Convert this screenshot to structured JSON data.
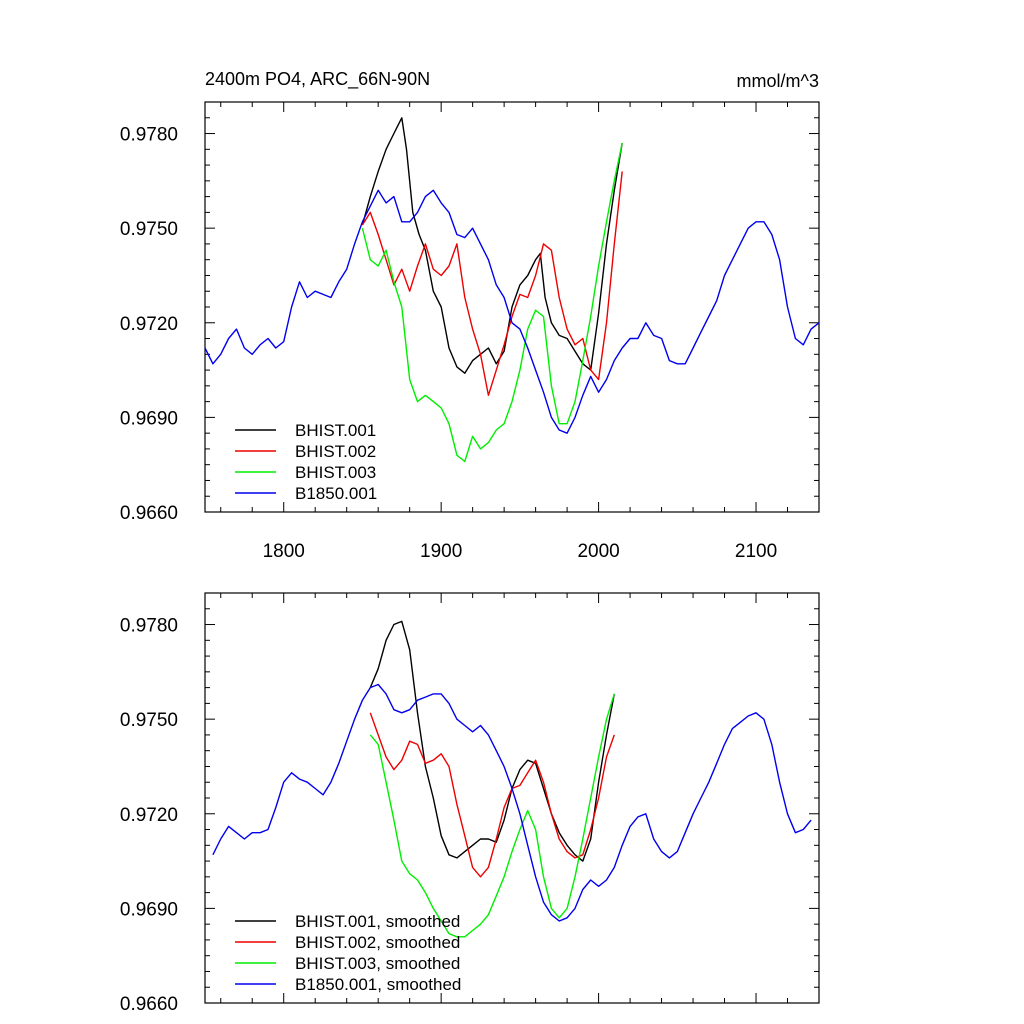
{
  "chart_data": [
    {
      "type": "line",
      "title": "2400m PO4, ARC_66N-90N",
      "units": "mmol/m^3",
      "xlim": [
        1750,
        2140
      ],
      "ylim": [
        0.966,
        0.979
      ],
      "x_ticks": [
        1800,
        1900,
        2000,
        2100
      ],
      "y_ticks": [
        0.966,
        0.969,
        0.972,
        0.975,
        0.978
      ],
      "y_tick_labels": [
        "0.9660",
        "0.9690",
        "0.9720",
        "0.9750",
        "0.9780"
      ],
      "x_tick_labels": [
        "1800",
        "1900",
        "2000",
        "2100"
      ],
      "grid": false,
      "legend_position": "bottom-left",
      "series": [
        {
          "name": "BHIST.001",
          "color": "#000000",
          "x": [
            1850,
            1855,
            1860,
            1865,
            1870,
            1875,
            1878,
            1882,
            1886,
            1890,
            1895,
            1900,
            1905,
            1910,
            1915,
            1920,
            1925,
            1930,
            1935,
            1940,
            1945,
            1950,
            1955,
            1960,
            1963,
            1966,
            1970,
            1975,
            1980,
            1985,
            1990,
            1995,
            2000,
            2005,
            2010,
            2015
          ],
          "y": [
            0.9751,
            0.976,
            0.9768,
            0.9775,
            0.978,
            0.9785,
            0.9775,
            0.9755,
            0.9748,
            0.9743,
            0.973,
            0.9725,
            0.9712,
            0.9706,
            0.9704,
            0.9708,
            0.971,
            0.9712,
            0.9707,
            0.9711,
            0.9725,
            0.9732,
            0.9735,
            0.974,
            0.9742,
            0.9728,
            0.972,
            0.9716,
            0.9715,
            0.9711,
            0.9707,
            0.9705,
            0.9723,
            0.9745,
            0.9762,
            0.9777
          ]
        },
        {
          "name": "BHIST.002",
          "color": "#ee0000",
          "x": [
            1850,
            1855,
            1860,
            1865,
            1870,
            1875,
            1880,
            1885,
            1890,
            1895,
            1900,
            1905,
            1910,
            1915,
            1920,
            1925,
            1930,
            1935,
            1940,
            1945,
            1950,
            1955,
            1960,
            1965,
            1970,
            1975,
            1980,
            1985,
            1990,
            1995,
            2000,
            2005,
            2010,
            2015
          ],
          "y": [
            0.9751,
            0.9755,
            0.9748,
            0.974,
            0.9732,
            0.9737,
            0.973,
            0.9738,
            0.9745,
            0.9737,
            0.9735,
            0.9738,
            0.9745,
            0.9728,
            0.9718,
            0.971,
            0.9697,
            0.9705,
            0.9713,
            0.9722,
            0.9729,
            0.9728,
            0.9735,
            0.9745,
            0.9743,
            0.9728,
            0.9718,
            0.9713,
            0.9715,
            0.9705,
            0.9702,
            0.972,
            0.9745,
            0.9768
          ]
        },
        {
          "name": "BHIST.003",
          "color": "#00ee00",
          "x": [
            1850,
            1855,
            1860,
            1865,
            1870,
            1875,
            1880,
            1885,
            1890,
            1895,
            1900,
            1905,
            1910,
            1915,
            1920,
            1925,
            1930,
            1935,
            1940,
            1945,
            1950,
            1955,
            1960,
            1965,
            1970,
            1975,
            1980,
            1985,
            1990,
            1995,
            2000,
            2005,
            2010,
            2015
          ],
          "y": [
            0.975,
            0.974,
            0.9738,
            0.9743,
            0.9733,
            0.9725,
            0.9702,
            0.9695,
            0.9697,
            0.9695,
            0.9693,
            0.9688,
            0.9678,
            0.9676,
            0.9684,
            0.968,
            0.9682,
            0.9686,
            0.9688,
            0.9695,
            0.9705,
            0.9718,
            0.9724,
            0.9722,
            0.97,
            0.9688,
            0.9688,
            0.9695,
            0.9708,
            0.9722,
            0.9738,
            0.9752,
            0.9765,
            0.9777
          ]
        },
        {
          "name": "B1850.001",
          "color": "#0000ee",
          "x": [
            1750,
            1755,
            1760,
            1765,
            1770,
            1775,
            1780,
            1785,
            1790,
            1795,
            1800,
            1805,
            1810,
            1815,
            1820,
            1825,
            1830,
            1835,
            1840,
            1845,
            1850,
            1855,
            1860,
            1865,
            1870,
            1875,
            1880,
            1885,
            1890,
            1895,
            1900,
            1905,
            1910,
            1915,
            1920,
            1925,
            1930,
            1935,
            1940,
            1945,
            1950,
            1955,
            1960,
            1965,
            1970,
            1975,
            1980,
            1985,
            1990,
            1995,
            2000,
            2005,
            2010,
            2015,
            2020,
            2025,
            2030,
            2035,
            2040,
            2045,
            2050,
            2055,
            2060,
            2065,
            2070,
            2075,
            2080,
            2085,
            2090,
            2095,
            2100,
            2105,
            2110,
            2115,
            2120,
            2125,
            2130,
            2135,
            2140
          ],
          "y": [
            0.9712,
            0.9707,
            0.971,
            0.9715,
            0.9718,
            0.9712,
            0.971,
            0.9713,
            0.9715,
            0.9712,
            0.9714,
            0.9725,
            0.9733,
            0.9728,
            0.973,
            0.9729,
            0.9728,
            0.9733,
            0.9737,
            0.9745,
            0.9752,
            0.9757,
            0.9762,
            0.9758,
            0.976,
            0.9752,
            0.9752,
            0.9755,
            0.976,
            0.9762,
            0.9758,
            0.9755,
            0.9748,
            0.9747,
            0.975,
            0.9745,
            0.974,
            0.9732,
            0.9728,
            0.972,
            0.9718,
            0.9712,
            0.9705,
            0.9698,
            0.969,
            0.9686,
            0.9685,
            0.969,
            0.9697,
            0.9703,
            0.9698,
            0.9702,
            0.9708,
            0.9712,
            0.9715,
            0.9715,
            0.972,
            0.9716,
            0.9715,
            0.9708,
            0.9707,
            0.9707,
            0.9712,
            0.9717,
            0.9722,
            0.9727,
            0.9735,
            0.974,
            0.9745,
            0.975,
            0.9752,
            0.9752,
            0.9748,
            0.974,
            0.9725,
            0.9715,
            0.9713,
            0.9718,
            0.972
          ]
        }
      ]
    },
    {
      "type": "line",
      "title": "",
      "xlim": [
        1750,
        2140
      ],
      "ylim": [
        0.966,
        0.979
      ],
      "x_ticks": [
        1800,
        1900,
        2000,
        2100
      ],
      "y_ticks": [
        0.966,
        0.969,
        0.972,
        0.975,
        0.978
      ],
      "y_tick_labels": [
        "0.9660",
        "0.9690",
        "0.9720",
        "0.9750",
        "0.9780"
      ],
      "grid": false,
      "legend_position": "bottom-left",
      "series": [
        {
          "name": "BHIST.001, smoothed",
          "color": "#000000",
          "x": [
            1855,
            1860,
            1865,
            1870,
            1875,
            1880,
            1885,
            1890,
            1895,
            1900,
            1905,
            1910,
            1915,
            1920,
            1925,
            1930,
            1935,
            1940,
            1945,
            1950,
            1955,
            1960,
            1965,
            1970,
            1975,
            1980,
            1985,
            1990,
            1995,
            2000,
            2005,
            2010
          ],
          "y": [
            0.976,
            0.9766,
            0.9775,
            0.978,
            0.9781,
            0.9772,
            0.9752,
            0.9735,
            0.9725,
            0.9713,
            0.9707,
            0.9706,
            0.9708,
            0.971,
            0.9712,
            0.9712,
            0.9711,
            0.9718,
            0.9728,
            0.9734,
            0.9737,
            0.9736,
            0.9728,
            0.972,
            0.9714,
            0.971,
            0.9707,
            0.9705,
            0.9712,
            0.973,
            0.9745,
            0.9758
          ]
        },
        {
          "name": "BHIST.002, smoothed",
          "color": "#ee0000",
          "x": [
            1855,
            1860,
            1865,
            1870,
            1875,
            1880,
            1885,
            1890,
            1895,
            1900,
            1905,
            1910,
            1915,
            1920,
            1925,
            1930,
            1935,
            1940,
            1945,
            1950,
            1955,
            1960,
            1965,
            1970,
            1975,
            1980,
            1985,
            1990,
            1995,
            2000,
            2005,
            2010
          ],
          "y": [
            0.9752,
            0.9745,
            0.9738,
            0.9734,
            0.9737,
            0.9743,
            0.9742,
            0.9736,
            0.9737,
            0.9739,
            0.9735,
            0.9723,
            0.9713,
            0.9703,
            0.97,
            0.9703,
            0.9712,
            0.9722,
            0.9728,
            0.9729,
            0.9733,
            0.9737,
            0.973,
            0.972,
            0.9712,
            0.9708,
            0.9706,
            0.9707,
            0.9715,
            0.9725,
            0.9738,
            0.9745
          ]
        },
        {
          "name": "BHIST.003, smoothed",
          "color": "#00ee00",
          "x": [
            1855,
            1860,
            1865,
            1870,
            1875,
            1880,
            1885,
            1890,
            1895,
            1900,
            1905,
            1910,
            1915,
            1920,
            1925,
            1930,
            1935,
            1940,
            1945,
            1950,
            1955,
            1960,
            1965,
            1970,
            1975,
            1980,
            1985,
            1990,
            1995,
            2000,
            2005,
            2010
          ],
          "y": [
            0.9745,
            0.9742,
            0.973,
            0.9718,
            0.9705,
            0.9701,
            0.9699,
            0.9695,
            0.969,
            0.9686,
            0.9682,
            0.9681,
            0.9681,
            0.9683,
            0.9685,
            0.9688,
            0.9694,
            0.97,
            0.9708,
            0.9715,
            0.9721,
            0.9715,
            0.97,
            0.969,
            0.9687,
            0.969,
            0.97,
            0.9712,
            0.9725,
            0.9738,
            0.975,
            0.9758
          ]
        },
        {
          "name": "B1850.001, smoothed",
          "color": "#0000ee",
          "x": [
            1755,
            1760,
            1765,
            1770,
            1775,
            1780,
            1785,
            1790,
            1795,
            1800,
            1805,
            1810,
            1815,
            1820,
            1825,
            1830,
            1835,
            1840,
            1845,
            1850,
            1855,
            1860,
            1865,
            1870,
            1875,
            1880,
            1885,
            1890,
            1895,
            1900,
            1905,
            1910,
            1915,
            1920,
            1925,
            1930,
            1935,
            1940,
            1945,
            1950,
            1955,
            1960,
            1965,
            1970,
            1975,
            1980,
            1985,
            1990,
            1995,
            2000,
            2005,
            2010,
            2015,
            2020,
            2025,
            2030,
            2035,
            2040,
            2045,
            2050,
            2055,
            2060,
            2065,
            2070,
            2075,
            2080,
            2085,
            2090,
            2095,
            2100,
            2105,
            2110,
            2115,
            2120,
            2125,
            2130,
            2135
          ],
          "y": [
            0.9707,
            0.9712,
            0.9716,
            0.9714,
            0.9712,
            0.9714,
            0.9714,
            0.9715,
            0.9722,
            0.973,
            0.9733,
            0.9731,
            0.973,
            0.9728,
            0.9726,
            0.973,
            0.9736,
            0.9743,
            0.975,
            0.9756,
            0.976,
            0.9761,
            0.9758,
            0.9753,
            0.9752,
            0.9753,
            0.9756,
            0.9757,
            0.9758,
            0.9758,
            0.9755,
            0.975,
            0.9748,
            0.9746,
            0.9748,
            0.9745,
            0.974,
            0.9735,
            0.9728,
            0.972,
            0.971,
            0.97,
            0.9692,
            0.9688,
            0.9686,
            0.9687,
            0.969,
            0.9696,
            0.9699,
            0.9697,
            0.9699,
            0.9703,
            0.971,
            0.9716,
            0.9719,
            0.972,
            0.9712,
            0.9708,
            0.9706,
            0.9708,
            0.9714,
            0.972,
            0.9725,
            0.973,
            0.9736,
            0.9742,
            0.9747,
            0.9749,
            0.9751,
            0.9752,
            0.975,
            0.9742,
            0.973,
            0.972,
            0.9714,
            0.9715,
            0.9718
          ]
        }
      ]
    }
  ]
}
